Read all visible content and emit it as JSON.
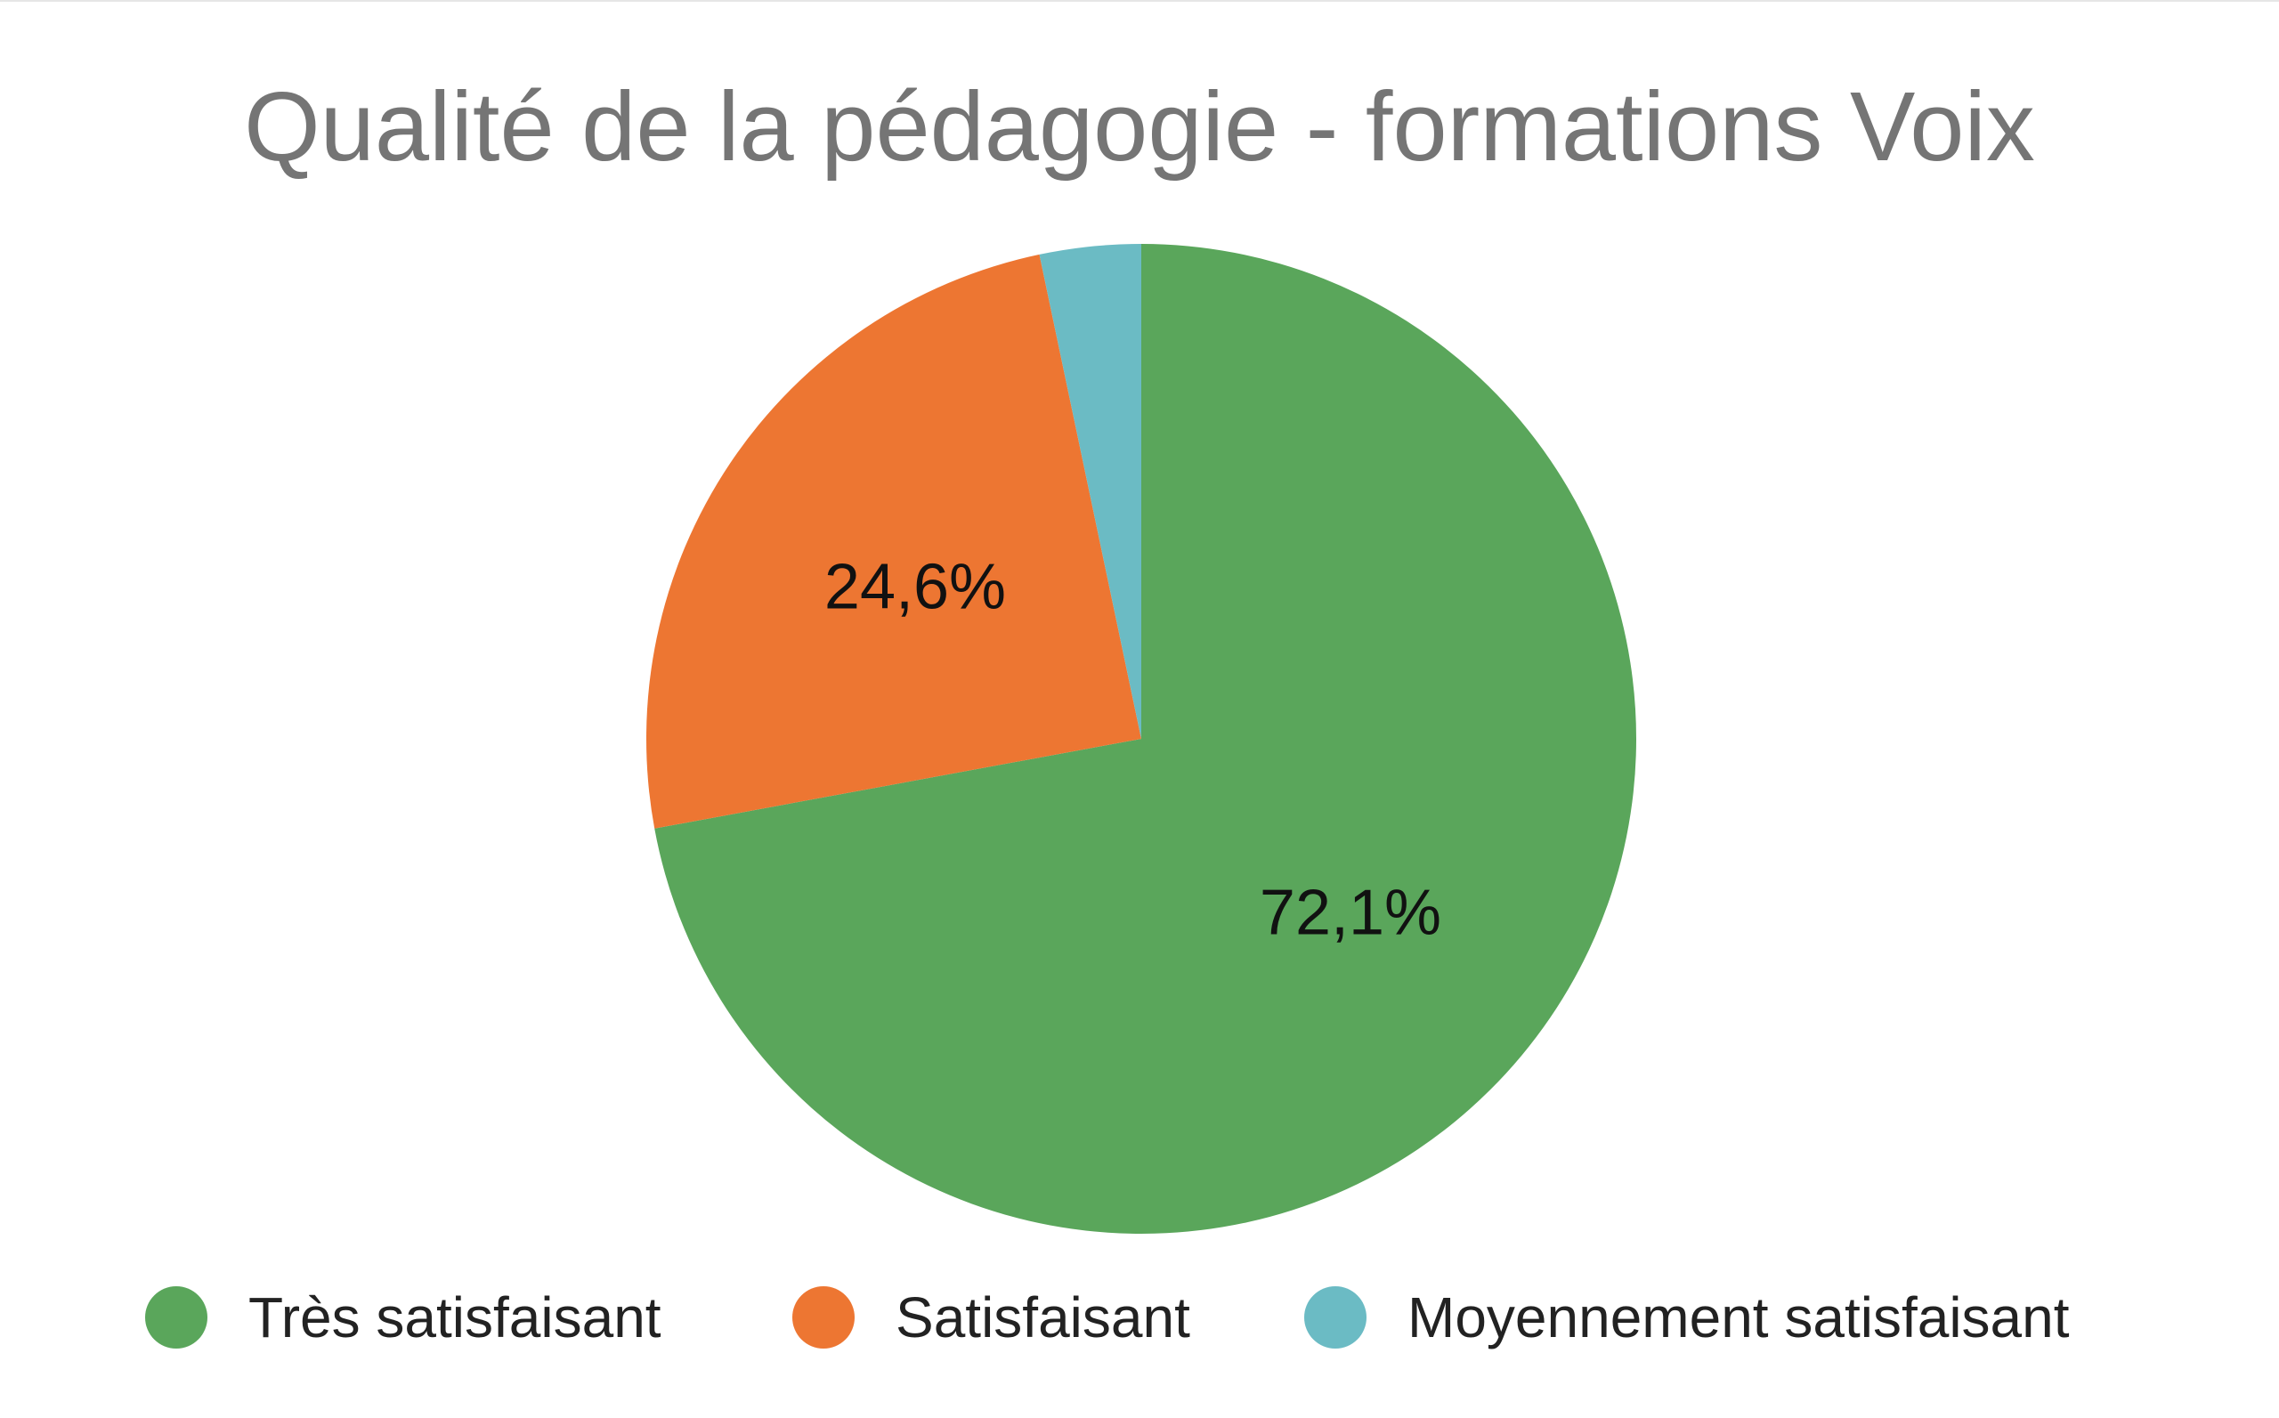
{
  "chart_data": {
    "type": "pie",
    "title": "Qualité de la pédagogie - formations Voix",
    "categories": [
      "Très satisfaisant",
      "Satisfaisant",
      "Moyennement satisfaisant"
    ],
    "values": [
      72.1,
      24.6,
      3.3
    ],
    "data_labels": [
      "72,1%",
      "24,6%",
      ""
    ],
    "colors": [
      "#5aa65b",
      "#ed7632",
      "#6bbbc4"
    ],
    "start_angle": "12 o'clock",
    "direction": "clockwise",
    "legend_position": "bottom"
  }
}
